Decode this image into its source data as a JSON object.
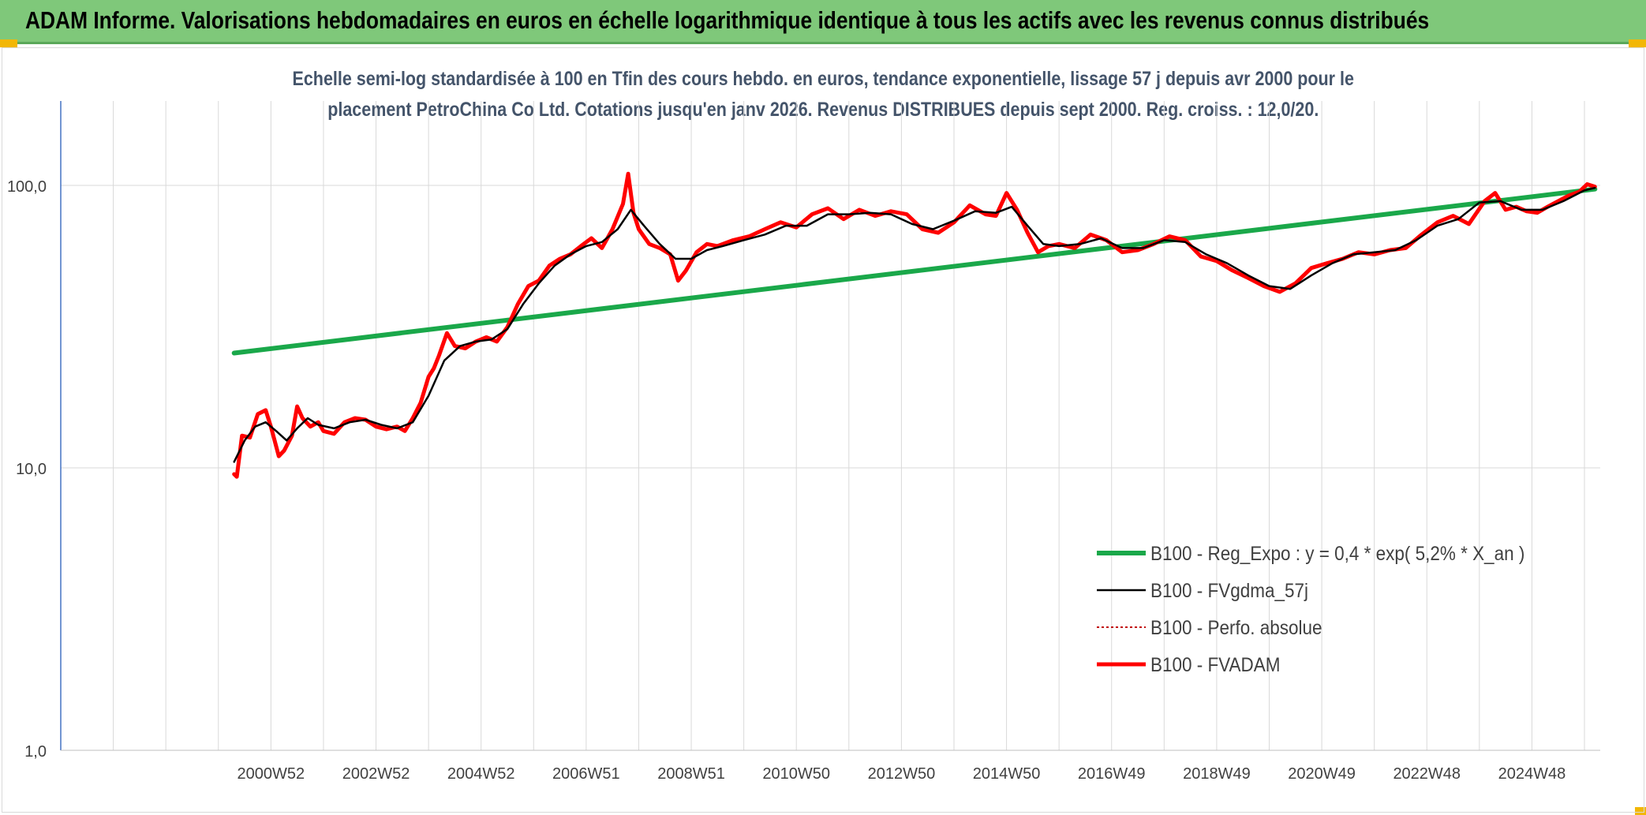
{
  "banner": {
    "title": "ADAM Informe. Valorisations hebdomadaires en euros en échelle logarithmique identique à tous les actifs avec les revenus connus distribués"
  },
  "colors": {
    "banner": "#7fc87a",
    "regression": "#1aa84a",
    "moving_average": "#000000",
    "fvadam": "#ff0000",
    "perfo": "#c00000",
    "axis": "#4472c4",
    "grid": "#d9d9d9",
    "corner": "#f2b705"
  },
  "chart_data": {
    "type": "line",
    "title_line1": "Echelle semi-log standardisée à 100 en Tfin des cours hebdo. en euros, tendance exponentielle, lissage 57 j depuis avr 2000 pour le",
    "title_line2": "placement PetroChina Co Ltd. Cotations jusqu'en janv 2026. Revenus DISTRIBUES depuis sept 2000. Reg. croiss. : 12,0/20.",
    "y_scale": "log",
    "ylim": [
      1,
      200
    ],
    "xlim": [
      1997.0,
      2026.3
    ],
    "y_ticks": [
      {
        "value": 1,
        "label": "1,0"
      },
      {
        "value": 10,
        "label": "10,0"
      },
      {
        "value": 100,
        "label": "100,0"
      }
    ],
    "x_ticks": [
      {
        "value": 2001.0,
        "label": "2000W52"
      },
      {
        "value": 2003.0,
        "label": "2002W52"
      },
      {
        "value": 2005.0,
        "label": "2004W52"
      },
      {
        "value": 2007.0,
        "label": "2006W51"
      },
      {
        "value": 2009.0,
        "label": "2008W51"
      },
      {
        "value": 2011.0,
        "label": "2010W50"
      },
      {
        "value": 2013.0,
        "label": "2012W50"
      },
      {
        "value": 2015.0,
        "label": "2014W50"
      },
      {
        "value": 2017.0,
        "label": "2016W49"
      },
      {
        "value": 2019.0,
        "label": "2018W49"
      },
      {
        "value": 2021.0,
        "label": "2020W49"
      },
      {
        "value": 2023.0,
        "label": "2022W48"
      },
      {
        "value": 2025.0,
        "label": "2024W48"
      }
    ],
    "grid": true,
    "legend_position": "bottom-right",
    "legend": [
      {
        "key": "reg",
        "label": "B100 - Reg_Expo : y = 0,4 * exp( 5,2% *  X_an )"
      },
      {
        "key": "ma",
        "label": "B100 - FVgdma_57j"
      },
      {
        "key": "perfo",
        "label": "B100 - Perfo. absolue"
      },
      {
        "key": "fvadam",
        "label": "B100 - FVADAM"
      }
    ],
    "series": [
      {
        "key": "reg",
        "name": "B100 - Reg_Expo : y = 0,4 * exp( 5,2% *  X_an )",
        "x": [
          2000.3,
          2026.2
        ],
        "y": [
          25.5,
          97
        ]
      },
      {
        "key": "fvadam",
        "name": "B100 - FVADAM",
        "x": [
          2000.3,
          2000.35,
          2000.45,
          2000.6,
          2000.75,
          2000.9,
          2001.0,
          2001.15,
          2001.25,
          2001.4,
          2001.5,
          2001.6,
          2001.75,
          2001.9,
          2002.0,
          2002.2,
          2002.4,
          2002.6,
          2002.8,
          2003.0,
          2003.2,
          2003.4,
          2003.55,
          2003.7,
          2003.85,
          2004.0,
          2004.1,
          2004.2,
          2004.35,
          2004.5,
          2004.7,
          2004.9,
          2005.1,
          2005.3,
          2005.5,
          2005.7,
          2005.9,
          2006.1,
          2006.3,
          2006.5,
          2006.7,
          2006.9,
          2007.1,
          2007.3,
          2007.5,
          2007.7,
          2007.8,
          2007.9,
          2008.0,
          2008.2,
          2008.4,
          2008.6,
          2008.75,
          2008.9,
          2009.1,
          2009.3,
          2009.5,
          2009.8,
          2010.1,
          2010.4,
          2010.7,
          2011.0,
          2011.3,
          2011.6,
          2011.9,
          2012.2,
          2012.5,
          2012.8,
          2013.1,
          2013.4,
          2013.7,
          2014.0,
          2014.3,
          2014.6,
          2014.8,
          2015.0,
          2015.2,
          2015.4,
          2015.6,
          2015.8,
          2016.0,
          2016.3,
          2016.6,
          2016.9,
          2017.2,
          2017.5,
          2017.8,
          2018.1,
          2018.4,
          2018.7,
          2019.0,
          2019.3,
          2019.6,
          2019.9,
          2020.2,
          2020.5,
          2020.8,
          2021.1,
          2021.4,
          2021.7,
          2022.0,
          2022.3,
          2022.6,
          2022.9,
          2023.2,
          2023.5,
          2023.8,
          2024.1,
          2024.3,
          2024.5,
          2024.7,
          2024.9,
          2025.1,
          2025.3,
          2025.5,
          2025.7,
          2025.9,
          2026.05,
          2026.2
        ],
        "y": [
          9.5,
          9.3,
          13.0,
          12.8,
          15.5,
          16.0,
          14.0,
          11.0,
          11.5,
          13.0,
          16.5,
          15.0,
          14.0,
          14.5,
          13.5,
          13.2,
          14.5,
          15.0,
          14.8,
          14.0,
          13.7,
          14.0,
          13.5,
          15.0,
          17.0,
          21.0,
          22.5,
          25.0,
          30.0,
          27.0,
          26.5,
          28.0,
          29.0,
          28.0,
          31.5,
          38.0,
          44.0,
          46.0,
          52.0,
          55.0,
          57.0,
          61.0,
          65.0,
          60.0,
          70.0,
          86.0,
          110.0,
          80.0,
          70.0,
          62.0,
          60.0,
          57.0,
          46.0,
          50.0,
          58.0,
          62.0,
          61.0,
          64.0,
          66.0,
          70.0,
          74.0,
          71.0,
          79.0,
          83.0,
          76.0,
          82.0,
          78.0,
          81.0,
          79.0,
          70.0,
          68.0,
          74.0,
          85.0,
          79.0,
          78.0,
          94.0,
          82.0,
          68.0,
          58.0,
          61.0,
          62.0,
          60.0,
          67.0,
          64.0,
          58.0,
          59.0,
          62.0,
          66.0,
          64.0,
          56.0,
          54.0,
          50.0,
          47.0,
          44.0,
          42.0,
          45.0,
          51.0,
          53.0,
          55.0,
          58.0,
          57.0,
          59.0,
          60.0,
          67.0,
          74.0,
          78.0,
          73.0,
          88.0,
          94.0,
          82.0,
          84.0,
          81.0,
          80.0,
          84.0,
          88.0,
          92.0,
          95.0,
          101.0,
          99.0
        ]
      },
      {
        "key": "ma",
        "name": "B100 - FVgdma_57j",
        "x": [
          2000.3,
          2000.5,
          2000.7,
          2000.9,
          2001.1,
          2001.3,
          2001.5,
          2001.7,
          2001.9,
          2002.2,
          2002.5,
          2002.8,
          2003.1,
          2003.4,
          2003.7,
          2004.0,
          2004.3,
          2004.6,
          2004.9,
          2005.2,
          2005.5,
          2005.8,
          2006.1,
          2006.4,
          2006.7,
          2007.0,
          2007.3,
          2007.6,
          2007.85,
          2008.1,
          2008.4,
          2008.7,
          2009.0,
          2009.3,
          2009.6,
          2010.0,
          2010.4,
          2010.8,
          2011.2,
          2011.6,
          2012.0,
          2012.4,
          2012.8,
          2013.2,
          2013.6,
          2014.0,
          2014.4,
          2014.8,
          2015.1,
          2015.4,
          2015.7,
          2016.0,
          2016.4,
          2016.8,
          2017.2,
          2017.6,
          2018.0,
          2018.4,
          2018.8,
          2019.2,
          2019.6,
          2020.0,
          2020.4,
          2020.8,
          2021.2,
          2021.6,
          2022.0,
          2022.4,
          2022.8,
          2023.2,
          2023.6,
          2024.0,
          2024.4,
          2024.8,
          2025.2,
          2025.6,
          2026.0,
          2026.2
        ],
        "y": [
          10.5,
          12.5,
          14.0,
          14.5,
          13.5,
          12.5,
          13.8,
          15.0,
          14.2,
          13.8,
          14.5,
          14.8,
          14.2,
          13.8,
          14.5,
          18.0,
          24.0,
          27.0,
          28.0,
          28.5,
          31.0,
          38.0,
          45.0,
          52.0,
          57.0,
          61.0,
          63.0,
          70.0,
          82.0,
          72.0,
          62.0,
          55.0,
          55.0,
          59.0,
          61.0,
          64.0,
          67.0,
          72.0,
          72.0,
          79.0,
          79.0,
          80.0,
          79.0,
          73.0,
          70.0,
          75.0,
          81.0,
          80.0,
          84.0,
          72.0,
          62.0,
          61.0,
          62.0,
          65.0,
          60.0,
          60.0,
          64.0,
          63.0,
          57.0,
          53.0,
          48.0,
          44.0,
          43.0,
          48.0,
          53.0,
          57.0,
          58.0,
          59.0,
          64.0,
          72.0,
          76.0,
          87.0,
          88.0,
          82.0,
          82.0,
          88.0,
          96.0,
          98.0
        ]
      }
    ]
  }
}
